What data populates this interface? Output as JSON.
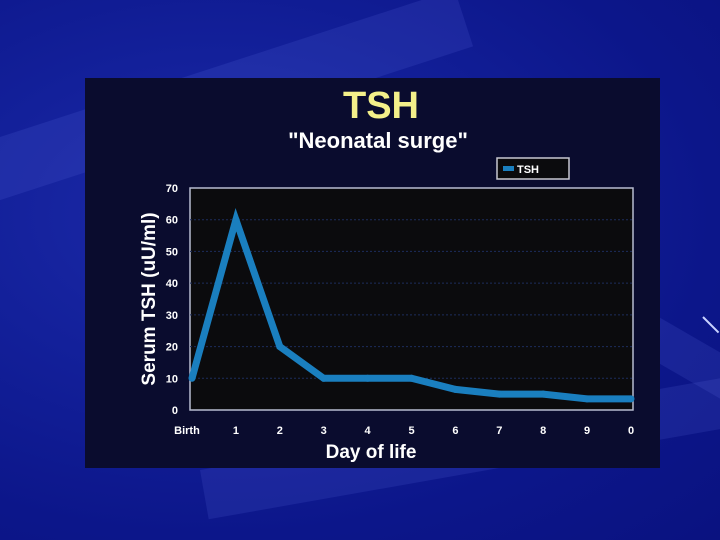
{
  "slide": {
    "title": "TSH",
    "subtitle": "\"Neonatal surge\""
  },
  "chart_data": {
    "type": "line",
    "title": "TSH",
    "subtitle": "\"Neonatal surge\"",
    "xlabel": "Day of life",
    "ylabel": "Serum TSH (uU/ml)",
    "categories": [
      "Birth",
      "1",
      "2",
      "3",
      "4",
      "5",
      "6",
      "7",
      "8",
      "9",
      "0"
    ],
    "series": [
      {
        "name": "TSH",
        "values": [
          10,
          60,
          20,
          10,
          10,
          10,
          6.5,
          5,
          5,
          3.5,
          3.5
        ]
      }
    ],
    "yticks": [
      0,
      10,
      20,
      30,
      40,
      50,
      60,
      70
    ],
    "ylim": [
      0,
      70
    ],
    "grid": true,
    "legend_position": "top-right",
    "colors": {
      "line": "#1a7fbf",
      "plot_bg": "#0b0b0d",
      "title": "#f4f08a"
    }
  }
}
